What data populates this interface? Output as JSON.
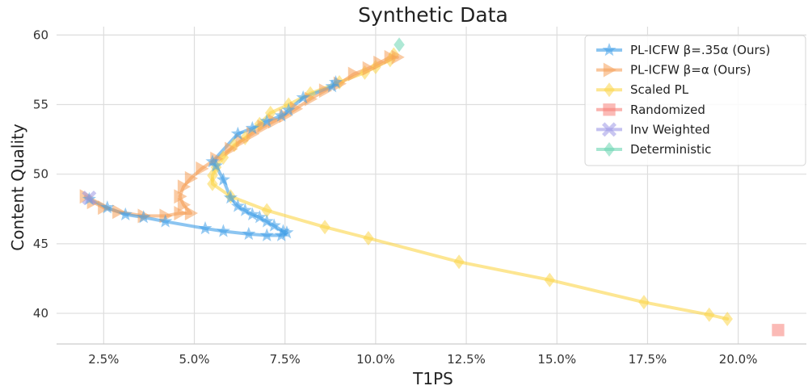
{
  "chart_data": {
    "type": "scatter",
    "title": "Synthetic Data",
    "xlabel": "T1PS",
    "ylabel": "Content Quality",
    "xlim": [
      0.012,
      0.2188
    ],
    "ylim": [
      37.8,
      60.6
    ],
    "x_ticks": [
      0.025,
      0.05,
      0.075,
      0.1,
      0.125,
      0.15,
      0.175,
      0.2
    ],
    "x_tick_labels": [
      "2.5%",
      "5.0%",
      "7.5%",
      "10.0%",
      "12.5%",
      "15.0%",
      "17.5%",
      "20.0%"
    ],
    "y_ticks": [
      40,
      45,
      50,
      55,
      60
    ],
    "y_tick_labels": [
      "40",
      "45",
      "50",
      "55",
      "60"
    ],
    "grid": true,
    "legend_position": "top-right",
    "series": [
      {
        "name": "PL-ICFW β=.35α (Ours)",
        "color": "#3f9ee8",
        "marker": "star",
        "x": [
          0.021,
          0.026,
          0.031,
          0.036,
          0.042,
          0.053,
          0.058,
          0.065,
          0.07,
          0.074,
          0.0755,
          0.0745,
          0.072,
          0.07,
          0.068,
          0.066,
          0.064,
          0.062,
          0.06,
          0.058,
          0.056,
          0.055,
          0.062,
          0.066,
          0.07,
          0.074,
          0.076,
          0.08,
          0.088,
          0.089
        ],
        "y": [
          48.2,
          47.6,
          47.1,
          46.9,
          46.6,
          46.1,
          45.9,
          45.7,
          45.6,
          45.6,
          45.8,
          45.9,
          46.3,
          46.6,
          46.9,
          47.1,
          47.4,
          47.7,
          48.3,
          49.6,
          50.6,
          50.9,
          52.9,
          53.3,
          53.8,
          54.2,
          54.6,
          55.5,
          56.3,
          56.6
        ]
      },
      {
        "name": "PL-ICFW β=α (Ours)",
        "color": "#f5a05a",
        "marker": "triangle-right",
        "x": [
          0.02,
          0.022,
          0.025,
          0.029,
          0.036,
          0.042,
          0.046,
          0.049,
          0.047,
          0.046,
          0.047,
          0.049,
          0.052,
          0.056,
          0.06,
          0.063,
          0.066,
          0.069,
          0.072,
          0.075,
          0.078,
          0.082,
          0.086,
          0.09,
          0.094,
          0.098,
          0.101,
          0.104,
          0.106
        ],
        "y": [
          48.4,
          48.0,
          47.6,
          47.3,
          47.0,
          47.0,
          47.2,
          47.2,
          47.8,
          48.4,
          49.1,
          49.7,
          50.4,
          51.1,
          51.8,
          52.4,
          52.9,
          53.4,
          53.8,
          54.2,
          54.7,
          55.4,
          56.0,
          56.5,
          57.2,
          57.6,
          58.0,
          58.4,
          58.4
        ]
      },
      {
        "name": "Scaled PL",
        "color": "#fbd64a",
        "marker": "diamond",
        "x": [
          0.105,
          0.104,
          0.1,
          0.097,
          0.09,
          0.082,
          0.076,
          0.071,
          0.068,
          0.064,
          0.061,
          0.058,
          0.056,
          0.055,
          0.055,
          0.06,
          0.07,
          0.086,
          0.098,
          0.123,
          0.148,
          0.174,
          0.192,
          0.197
        ],
        "y": [
          58.6,
          58.2,
          57.7,
          57.3,
          56.6,
          55.8,
          55.0,
          54.4,
          53.6,
          52.6,
          52.1,
          51.2,
          50.5,
          49.9,
          49.3,
          48.4,
          47.4,
          46.2,
          45.4,
          43.7,
          42.4,
          40.8,
          39.9,
          39.6
        ]
      },
      {
        "name": "Randomized",
        "color": "#f7827a",
        "marker": "square",
        "x": [
          0.211
        ],
        "y": [
          38.8
        ]
      },
      {
        "name": "Inv Weighted",
        "color": "#9d97e6",
        "marker": "cross",
        "x": [
          0.021
        ],
        "y": [
          48.3
        ]
      },
      {
        "name": "Deterministic",
        "color": "#6cd6b2",
        "marker": "diamond",
        "x": [
          0.1065
        ],
        "y": [
          59.3
        ]
      }
    ]
  }
}
